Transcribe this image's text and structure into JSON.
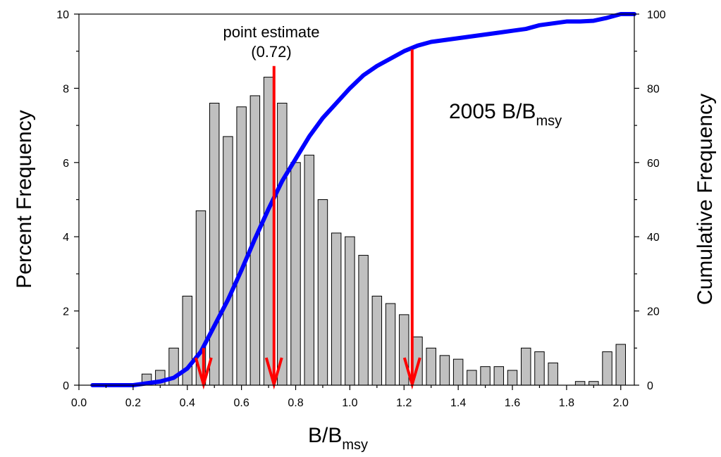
{
  "chart_data": {
    "type": "bar",
    "title": "",
    "xlabel": "B/B",
    "xlabel_sub": "msy",
    "ylabel": "Percent Frequency",
    "y2label": "Cumulative Frequency",
    "xlim": [
      0.0,
      2.05
    ],
    "ylim": [
      0,
      10
    ],
    "y2lim": [
      0,
      100
    ],
    "x_ticks": [
      "0.0",
      "0.2",
      "0.4",
      "0.6",
      "0.8",
      "1.0",
      "1.2",
      "1.4",
      "1.6",
      "1.8",
      "2.0"
    ],
    "y_ticks": [
      "0",
      "2",
      "4",
      "6",
      "8",
      "10"
    ],
    "y2_ticks": [
      "0",
      "20",
      "40",
      "60",
      "80",
      "100"
    ],
    "grid": false,
    "bar_width": 0.035,
    "bars": {
      "x": [
        0.25,
        0.3,
        0.35,
        0.4,
        0.45,
        0.5,
        0.55,
        0.6,
        0.65,
        0.7,
        0.75,
        0.8,
        0.85,
        0.9,
        0.95,
        1.0,
        1.05,
        1.1,
        1.15,
        1.2,
        1.25,
        1.3,
        1.35,
        1.4,
        1.45,
        1.5,
        1.55,
        1.6,
        1.65,
        1.7,
        1.75,
        1.85,
        1.9,
        1.95,
        2.0
      ],
      "values": [
        0.3,
        0.4,
        1.0,
        2.4,
        4.7,
        7.6,
        6.7,
        7.5,
        7.8,
        8.3,
        7.6,
        6.0,
        6.2,
        5.0,
        4.1,
        4.0,
        3.5,
        2.4,
        2.2,
        1.9,
        1.3,
        1.0,
        0.8,
        0.7,
        0.4,
        0.5,
        0.5,
        0.4,
        1.0,
        0.9,
        0.6,
        0.1,
        0.1,
        0.9,
        1.1
      ]
    },
    "cumulative": {
      "name": "Cumulative Frequency",
      "color": "#0000ff",
      "x": [
        0.05,
        0.1,
        0.15,
        0.2,
        0.25,
        0.3,
        0.35,
        0.4,
        0.45,
        0.5,
        0.55,
        0.6,
        0.65,
        0.7,
        0.75,
        0.8,
        0.85,
        0.9,
        0.95,
        1.0,
        1.05,
        1.1,
        1.15,
        1.2,
        1.25,
        1.3,
        1.35,
        1.4,
        1.45,
        1.5,
        1.55,
        1.6,
        1.65,
        1.7,
        1.75,
        1.8,
        1.85,
        1.9,
        1.95,
        2.0,
        2.05
      ],
      "values": [
        0,
        0,
        0,
        0,
        0.5,
        1,
        2,
        4.5,
        9,
        16,
        23,
        31,
        39.5,
        47.5,
        55,
        61,
        67,
        72,
        76,
        80,
        83.5,
        86,
        88,
        90,
        91.5,
        92.5,
        93,
        93.5,
        94,
        94.5,
        95,
        95.5,
        96,
        97,
        97.5,
        98,
        98,
        98.2,
        99,
        100,
        100
      ]
    },
    "markers": {
      "color": "#ff0000",
      "arrows": [
        {
          "x": 0.46,
          "top": 1.0
        },
        {
          "x": 0.72,
          "top": 8.6
        },
        {
          "x": 1.23,
          "top": 9.05
        }
      ]
    },
    "annotations": {
      "point_estimate_line1": "point estimate",
      "point_estimate_line2": "(0.72)",
      "year_label": "2005 B/B",
      "year_label_sub": "msy"
    }
  }
}
